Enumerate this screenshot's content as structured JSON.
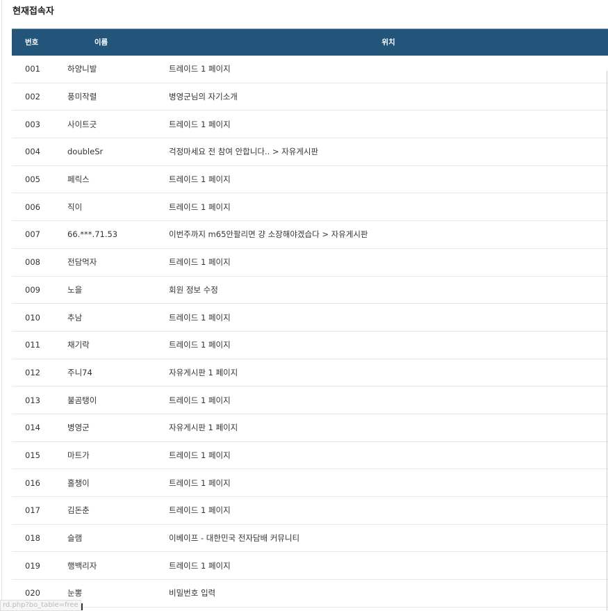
{
  "title": "현재접속자",
  "columns": {
    "num": "번호",
    "name": "이름",
    "location": "위치"
  },
  "rows": [
    {
      "num": "001",
      "name": "하양니발",
      "location": "트레이드 1 페이지"
    },
    {
      "num": "002",
      "name": "풍미작렬",
      "location": "병영군님의 자기소개"
    },
    {
      "num": "003",
      "name": "사이트긋",
      "location": "트레이드 1 페이지"
    },
    {
      "num": "004",
      "name": "doubleSr",
      "location": "걱정마세요 전 참여 안합니다.. > 자유게시판"
    },
    {
      "num": "005",
      "name": "페릭스",
      "location": "트레이드 1 페이지"
    },
    {
      "num": "006",
      "name": "직이",
      "location": "트레이드 1 페이지"
    },
    {
      "num": "007",
      "name": "66.***.71.53",
      "location": "이번주까지 m65안팔리면 걍 소장해야겠습다 > 자유게시판"
    },
    {
      "num": "008",
      "name": "전담먹자",
      "location": "트레이드 1 페이지"
    },
    {
      "num": "009",
      "name": "노을",
      "location": "회원 정보 수정"
    },
    {
      "num": "010",
      "name": "추남",
      "location": "트레이드 1 페이지"
    },
    {
      "num": "011",
      "name": "채기락",
      "location": "트레이드 1 페이지"
    },
    {
      "num": "012",
      "name": "주니74",
      "location": "자유게시판 1 페이지"
    },
    {
      "num": "013",
      "name": "불곰탱이",
      "location": "트레이드 1 페이지"
    },
    {
      "num": "014",
      "name": "병영군",
      "location": "자유게시판 1 페이지"
    },
    {
      "num": "015",
      "name": "마트가",
      "location": "트레이드 1 페이지"
    },
    {
      "num": "016",
      "name": "홀챙이",
      "location": "트레이드 1 페이지"
    },
    {
      "num": "017",
      "name": "김돈춘",
      "location": "트레이드 1 페이지"
    },
    {
      "num": "018",
      "name": "슬램",
      "location": "이베이프 - 대한민국 전자담배 커뮤니티"
    },
    {
      "num": "019",
      "name": "행백리자",
      "location": "트레이드 1 페이지"
    },
    {
      "num": "020",
      "name": "눈뽕",
      "location": "비밀번호 입력"
    }
  ],
  "status_bar": "rd.php?bo_table=free",
  "colors": {
    "header_bg": "#23557a"
  }
}
